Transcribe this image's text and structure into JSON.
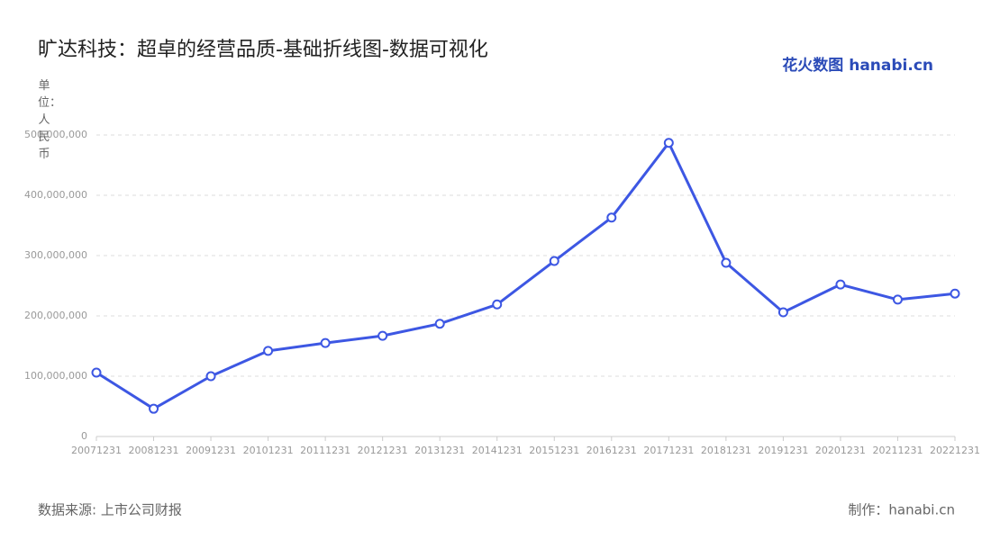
{
  "chart_data": {
    "type": "line",
    "title": "旷达科技：超卓的经营品质-基础折线图-数据可视化",
    "y_label": "单位：人民币",
    "brand": "花火数图 hanabi.cn",
    "source": "数据来源: 上市公司财报",
    "credit": "制作：hanabi.cn",
    "categories": [
      "20071231",
      "20081231",
      "20091231",
      "20101231",
      "20111231",
      "20121231",
      "20131231",
      "20141231",
      "20151231",
      "20161231",
      "20171231",
      "20181231",
      "20191231",
      "20201231",
      "20211231",
      "20221231"
    ],
    "series": [
      {
        "name": "旷达科技",
        "color": "#3d57e3",
        "values": [
          106000000,
          46000000,
          100000000,
          142000000,
          155000000,
          167000000,
          187000000,
          219000000,
          291000000,
          363000000,
          487000000,
          288000000,
          206000000,
          252000000,
          227000000,
          237000000
        ]
      }
    ],
    "ylim": [
      0,
      500000000
    ],
    "yticks": [
      0,
      {
        "value": 100000000,
        "label": "100,000,000"
      },
      {
        "value": 200000000,
        "label": "200,000,000"
      },
      {
        "value": 300000000,
        "label": "300,000,000"
      },
      {
        "value": 400000000,
        "label": "400,000,000"
      },
      {
        "value": 500000000,
        "label": "500,000,000"
      }
    ],
    "grid": true
  }
}
